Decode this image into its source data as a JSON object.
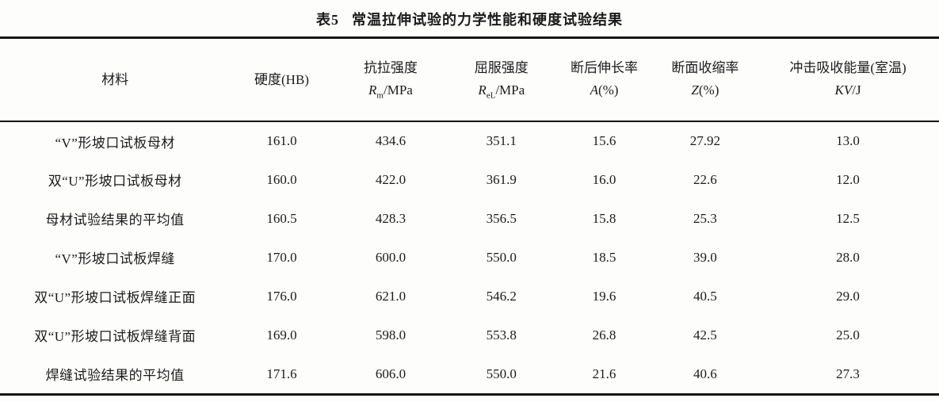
{
  "title": {
    "number": "表5",
    "caption": "常温拉伸试验的力学性能和硬度试验结果"
  },
  "table": {
    "columns": [
      {
        "line1": "材料",
        "symbol": "",
        "subscript": "",
        "rest": ""
      },
      {
        "line1": "硬度(HB)",
        "symbol": "",
        "subscript": "",
        "rest": ""
      },
      {
        "line1": "抗拉强度",
        "symbol": "R",
        "subscript": "m",
        "rest": "/MPa"
      },
      {
        "line1": "屈服强度",
        "symbol": "R",
        "subscript": "eL",
        "rest": "/MPa"
      },
      {
        "line1": "断后伸长率",
        "symbol": "A",
        "subscript": "",
        "rest": "(%)"
      },
      {
        "line1": "断面收缩率",
        "symbol": "Z",
        "subscript": "",
        "rest": "(%)"
      },
      {
        "line1": "冲击吸收能量(室温)",
        "symbol": "KV",
        "subscript": "",
        "rest": "/J"
      }
    ],
    "rows": [
      {
        "material": "“V”形坡口试板母材",
        "values": [
          "161.0",
          "434.6",
          "351.1",
          "15.6",
          "27.92",
          "13.0"
        ]
      },
      {
        "material": "双“U”形坡口试板母材",
        "values": [
          "160.0",
          "422.0",
          "361.9",
          "16.0",
          "22.6",
          "12.0"
        ]
      },
      {
        "material": "母材试验结果的平均值",
        "values": [
          "160.5",
          "428.3",
          "356.5",
          "15.8",
          "25.3",
          "12.5"
        ]
      },
      {
        "material": "“V”形坡口试板焊缝",
        "values": [
          "170.0",
          "600.0",
          "550.0",
          "18.5",
          "39.0",
          "28.0"
        ]
      },
      {
        "material": "双“U”形坡口试板焊缝正面",
        "values": [
          "176.0",
          "621.0",
          "546.2",
          "19.6",
          "40.5",
          "29.0"
        ]
      },
      {
        "material": "双“U”形坡口试板焊缝背面",
        "values": [
          "169.0",
          "598.0",
          "553.8",
          "26.8",
          "42.5",
          "25.0"
        ]
      },
      {
        "material": "焊缝试验结果的平均值",
        "values": [
          "171.6",
          "606.0",
          "550.0",
          "21.6",
          "40.6",
          "27.3"
        ]
      }
    ]
  },
  "colors": {
    "background": "#fdfdfc",
    "text": "#1b1b1b",
    "rule": "#161616"
  }
}
